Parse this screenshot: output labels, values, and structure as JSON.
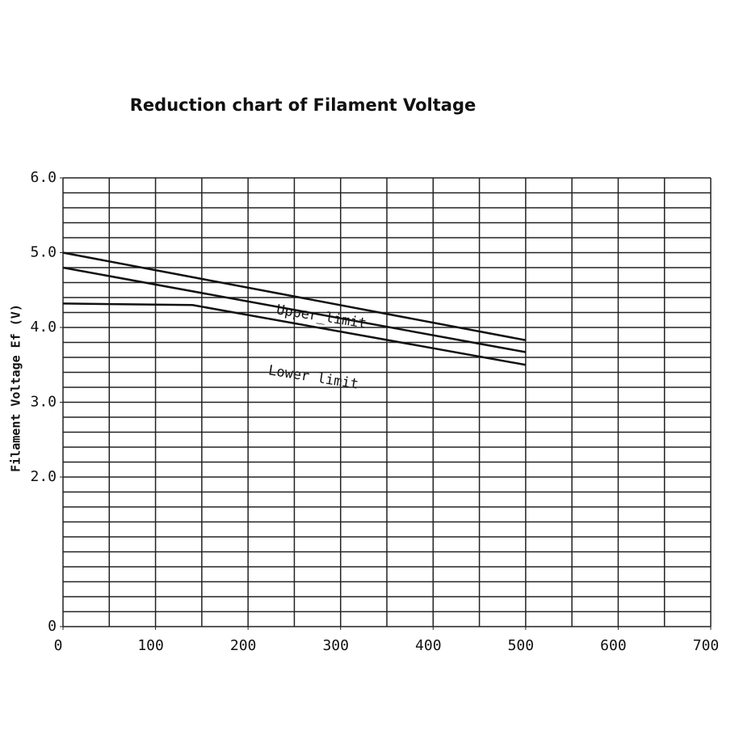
{
  "chart_data": {
    "type": "line",
    "title": "Reduction chart of Filament Voltage",
    "y_label": "Filament Voltage   Ef (V)",
    "annotations": [
      "Upper_limit",
      "Lower limit"
    ],
    "series": [
      {
        "color": "#111111",
        "x": [
          0,
          500
        ],
        "values": [
          5.0,
          3.83
        ]
      },
      {
        "color": "#111111",
        "x": [
          0,
          500
        ],
        "values": [
          4.8,
          3.67
        ]
      },
      {
        "color": "#111111",
        "x": [
          0,
          140,
          500
        ],
        "values": [
          4.32,
          4.3,
          3.5
        ]
      }
    ],
    "xlim": [
      0,
      700
    ],
    "ylim": [
      0,
      6
    ],
    "xticks": [
      0,
      100,
      200,
      300,
      400,
      500,
      600,
      700
    ],
    "yticks": [
      0,
      {
        "value": 2,
        "label": "2.0"
      },
      {
        "value": 3,
        "label": "3.0"
      },
      {
        "value": 4,
        "label": "4.0"
      },
      {
        "value": 5,
        "label": "5.0"
      },
      {
        "value": 6,
        "label": "6.0"
      }
    ],
    "grid": true,
    "xgrid": [
      0,
      50,
      100,
      150,
      200,
      250,
      300,
      350,
      400,
      450,
      500,
      550,
      600,
      650,
      700
    ],
    "ygrid": [
      0,
      0.2,
      0.4,
      0.6,
      0.8,
      1,
      1.2,
      1.4,
      1.6,
      1.8,
      2,
      2.2,
      2.4,
      2.6,
      2.8,
      3,
      3.2,
      3.4,
      3.6,
      3.8,
      4,
      4.2,
      4.4,
      4.6,
      4.8,
      5,
      5.2,
      5.4,
      5.6,
      5.8,
      6
    ]
  }
}
